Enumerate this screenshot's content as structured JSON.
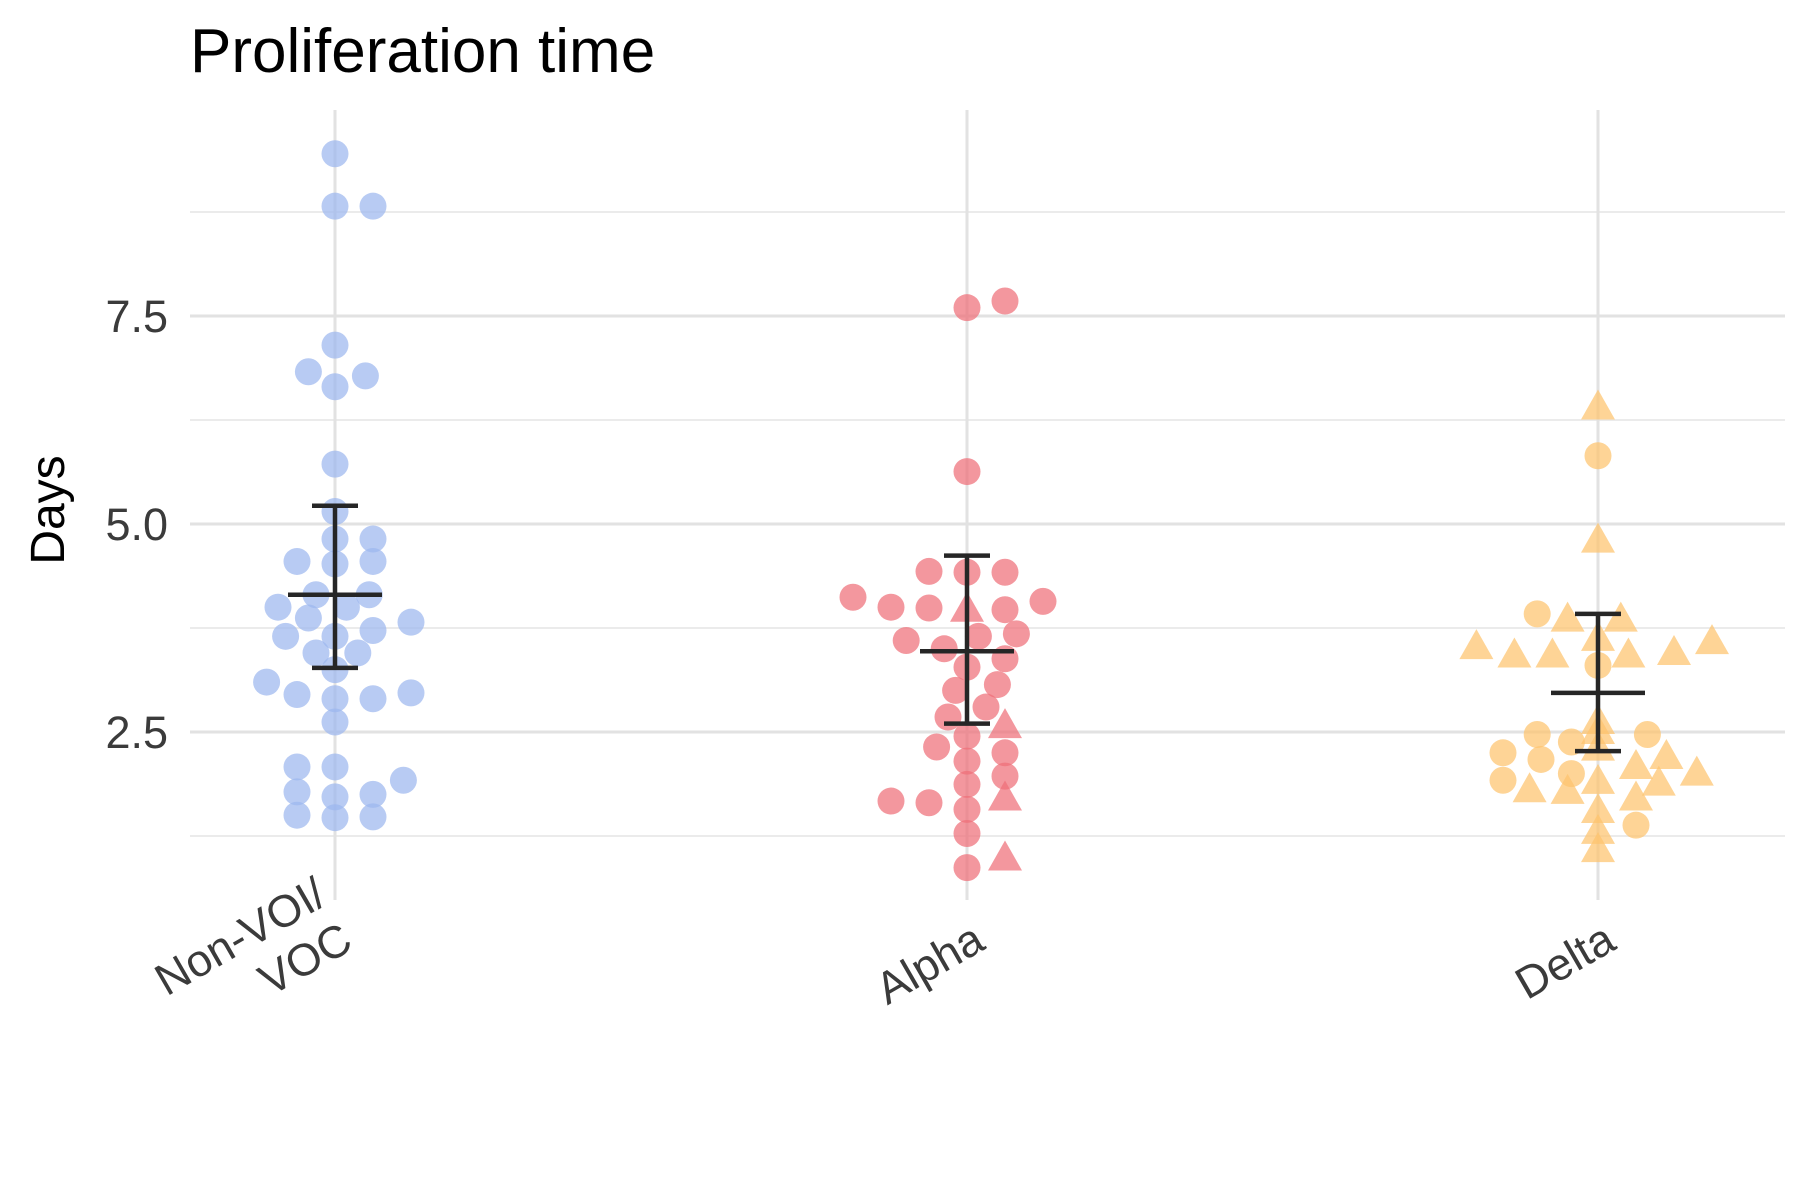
{
  "chart_data": {
    "type": "scatter",
    "title": "Proliferation time",
    "ylabel": "Days",
    "xlabel": "",
    "categories": [
      "Non-VOI/ VOC",
      "Alpha",
      "Delta"
    ],
    "category_label_lines": [
      [
        "Non-VOI/",
        "VOC"
      ],
      [
        "Alpha"
      ],
      [
        "Delta"
      ]
    ],
    "y_ticks": [
      2.5,
      5.0,
      7.5
    ],
    "y_tick_labels": [
      "2.5",
      "5.0",
      "7.5"
    ],
    "ylim": [
      0.5,
      10.0
    ],
    "grid": true,
    "legend": "none",
    "colors": {
      "Non-VOI/ VOC": "#9db7ef",
      "Alpha": "#ee6f78",
      "Delta": "#fec46e",
      "summary": "#262626"
    },
    "series": [
      {
        "category": "Non-VOI/ VOC",
        "summary": {
          "mean": 4.15,
          "lower": 3.27,
          "upper": 5.22
        },
        "circles": [
          {
            "offset": 0,
            "y": 9.45
          },
          {
            "offset": 0,
            "y": 8.82
          },
          {
            "offset": 1,
            "y": 8.82
          },
          {
            "offset": 0,
            "y": 7.15
          },
          {
            "offset": -0.7,
            "y": 6.83
          },
          {
            "offset": 0.8,
            "y": 6.78
          },
          {
            "offset": 0,
            "y": 6.65
          },
          {
            "offset": 0,
            "y": 5.72
          },
          {
            "offset": 0,
            "y": 5.15
          },
          {
            "offset": 0,
            "y": 4.82
          },
          {
            "offset": 1,
            "y": 4.82
          },
          {
            "offset": -1,
            "y": 4.55
          },
          {
            "offset": 0,
            "y": 4.52
          },
          {
            "offset": 1,
            "y": 4.55
          },
          {
            "offset": -0.5,
            "y": 4.15
          },
          {
            "offset": 0.9,
            "y": 4.15
          },
          {
            "offset": -1.5,
            "y": 4.0
          },
          {
            "offset": 0.3,
            "y": 4.0
          },
          {
            "offset": -0.7,
            "y": 3.87
          },
          {
            "offset": 2,
            "y": 3.82
          },
          {
            "offset": -1.3,
            "y": 3.65
          },
          {
            "offset": 0,
            "y": 3.65
          },
          {
            "offset": 1,
            "y": 3.72
          },
          {
            "offset": -0.5,
            "y": 3.45
          },
          {
            "offset": 0.6,
            "y": 3.45
          },
          {
            "offset": 0,
            "y": 3.25
          },
          {
            "offset": -1.8,
            "y": 3.1
          },
          {
            "offset": -1,
            "y": 2.95
          },
          {
            "offset": 2,
            "y": 2.97
          },
          {
            "offset": 0,
            "y": 2.9
          },
          {
            "offset": 1,
            "y": 2.9
          },
          {
            "offset": 0,
            "y": 2.62
          },
          {
            "offset": -1,
            "y": 2.08
          },
          {
            "offset": 0,
            "y": 2.08
          },
          {
            "offset": 1.8,
            "y": 1.92
          },
          {
            "offset": -1,
            "y": 1.78
          },
          {
            "offset": 0,
            "y": 1.72
          },
          {
            "offset": 1,
            "y": 1.75
          },
          {
            "offset": -1,
            "y": 1.5
          },
          {
            "offset": 0,
            "y": 1.47
          },
          {
            "offset": 1,
            "y": 1.48
          }
        ],
        "triangles": []
      },
      {
        "category": "Alpha",
        "summary": {
          "mean": 3.47,
          "lower": 2.6,
          "upper": 4.62
        },
        "circles": [
          {
            "offset": 0,
            "y": 7.6
          },
          {
            "offset": 1,
            "y": 7.68
          },
          {
            "offset": 0,
            "y": 5.63
          },
          {
            "offset": -1,
            "y": 4.43
          },
          {
            "offset": 0,
            "y": 4.42
          },
          {
            "offset": 1,
            "y": 4.42
          },
          {
            "offset": -3,
            "y": 4.12
          },
          {
            "offset": -2,
            "y": 4.0
          },
          {
            "offset": -1,
            "y": 3.99
          },
          {
            "offset": 1,
            "y": 3.97
          },
          {
            "offset": 2,
            "y": 4.07
          },
          {
            "offset": -1.6,
            "y": 3.6
          },
          {
            "offset": -0.6,
            "y": 3.5
          },
          {
            "offset": 0.3,
            "y": 3.65
          },
          {
            "offset": 1.3,
            "y": 3.68
          },
          {
            "offset": 1,
            "y": 3.38
          },
          {
            "offset": 0,
            "y": 3.28
          },
          {
            "offset": -0.3,
            "y": 3.0
          },
          {
            "offset": 0.8,
            "y": 3.07
          },
          {
            "offset": 0.5,
            "y": 2.8
          },
          {
            "offset": -0.5,
            "y": 2.68
          },
          {
            "offset": 0,
            "y": 2.45
          },
          {
            "offset": -0.8,
            "y": 2.32
          },
          {
            "offset": 1,
            "y": 2.25
          },
          {
            "offset": 0,
            "y": 2.15
          },
          {
            "offset": 1,
            "y": 1.97
          },
          {
            "offset": 0,
            "y": 1.87
          },
          {
            "offset": -2,
            "y": 1.67
          },
          {
            "offset": -1,
            "y": 1.65
          },
          {
            "offset": 0,
            "y": 1.57
          },
          {
            "offset": 0,
            "y": 1.28
          },
          {
            "offset": 0,
            "y": 0.87
          }
        ],
        "triangles": [
          {
            "offset": 0,
            "y": 3.97
          },
          {
            "offset": 1,
            "y": 2.57
          },
          {
            "offset": 1,
            "y": 1.7
          },
          {
            "offset": 1,
            "y": 0.98
          }
        ]
      },
      {
        "category": "Delta",
        "summary": {
          "mean": 2.97,
          "lower": 2.27,
          "upper": 3.92
        },
        "circles": [
          {
            "offset": 0,
            "y": 5.82
          },
          {
            "offset": -1.6,
            "y": 3.92
          },
          {
            "offset": 0,
            "y": 3.3
          },
          {
            "offset": -1.6,
            "y": 2.47
          },
          {
            "offset": -0.7,
            "y": 2.38
          },
          {
            "offset": 1.3,
            "y": 2.47
          },
          {
            "offset": -2.5,
            "y": 2.25
          },
          {
            "offset": -1.5,
            "y": 2.17
          },
          {
            "offset": -0.7,
            "y": 2.0
          },
          {
            "offset": -2.5,
            "y": 1.92
          },
          {
            "offset": 1,
            "y": 1.38
          }
        ],
        "triangles": [
          {
            "offset": 0,
            "y": 6.4
          },
          {
            "offset": 0,
            "y": 4.8
          },
          {
            "offset": -0.8,
            "y": 3.85
          },
          {
            "offset": 0.6,
            "y": 3.85
          },
          {
            "offset": 0,
            "y": 3.62
          },
          {
            "offset": -3.2,
            "y": 3.52
          },
          {
            "offset": -2.2,
            "y": 3.42
          },
          {
            "offset": -1.2,
            "y": 3.42
          },
          {
            "offset": 0.8,
            "y": 3.42
          },
          {
            "offset": 2,
            "y": 3.45
          },
          {
            "offset": 3,
            "y": 3.58
          },
          {
            "offset": 0,
            "y": 2.62
          },
          {
            "offset": 0,
            "y": 2.5
          },
          {
            "offset": 0,
            "y": 2.3
          },
          {
            "offset": 1.8,
            "y": 2.2
          },
          {
            "offset": 1,
            "y": 2.08
          },
          {
            "offset": 2.6,
            "y": 2.0
          },
          {
            "offset": 0,
            "y": 1.9
          },
          {
            "offset": 1.6,
            "y": 1.88
          },
          {
            "offset": -1.8,
            "y": 1.8
          },
          {
            "offset": -0.8,
            "y": 1.78
          },
          {
            "offset": 1,
            "y": 1.7
          },
          {
            "offset": 0,
            "y": 1.55
          },
          {
            "offset": 0,
            "y": 1.3
          },
          {
            "offset": 0,
            "y": 1.08
          }
        ]
      }
    ]
  }
}
